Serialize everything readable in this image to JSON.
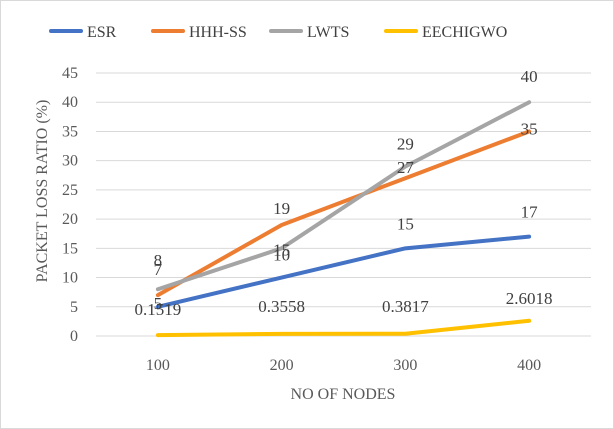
{
  "chart_data": {
    "type": "line",
    "title": "",
    "xlabel": "NO OF NODES",
    "ylabel": "PACKET LOSS RATIO (%)",
    "categories": [
      "100",
      "200",
      "300",
      "400"
    ],
    "ylim": [
      0,
      45
    ],
    "yticks": [
      "0",
      "5",
      "10",
      "15",
      "20",
      "25",
      "30",
      "35",
      "40",
      "45"
    ],
    "grid": true,
    "legend_position": "top",
    "series": [
      {
        "name": "ESR",
        "color": "#4472C4",
        "values": [
          5,
          10,
          15,
          17
        ],
        "labels": [
          "5",
          "",
          "15",
          "17"
        ]
      },
      {
        "name": "HHH-SS",
        "color": "#ED7D31",
        "values": [
          7,
          19,
          27,
          35
        ],
        "labels": [
          "7",
          "19",
          "27",
          "35"
        ]
      },
      {
        "name": "LWTS",
        "color": "#A5A5A5",
        "values": [
          8,
          15,
          29,
          40
        ],
        "labels": [
          "8",
          "15",
          "29",
          "40"
        ]
      },
      {
        "name": "EECHIGWO",
        "color": "#FFC000",
        "values": [
          0.1519,
          0.3558,
          0.3817,
          2.6018
        ],
        "labels": [
          "0.1519",
          "0.3558",
          "0.3817",
          "2.6018"
        ]
      }
    ],
    "extra_labels": [
      {
        "series": "LWTS",
        "category": "200",
        "text": "10"
      }
    ]
  }
}
